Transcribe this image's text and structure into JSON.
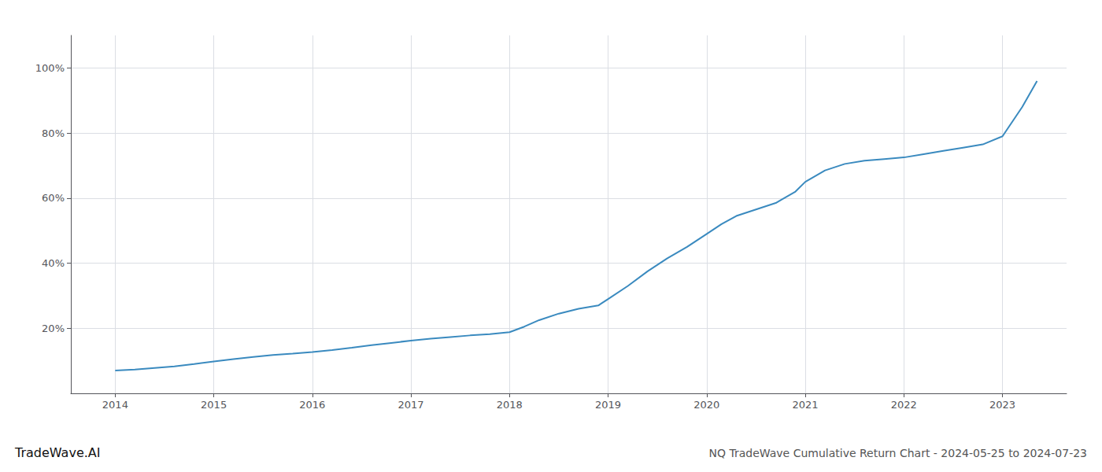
{
  "chart_data": {
    "type": "line",
    "title": "NQ TradeWave Cumulative Return Chart - 2024-05-25 to 2024-07-23",
    "annotations": [
      "TradeWave.AI"
    ],
    "color": "#3a8abf",
    "grid": true,
    "x": [
      2014.0,
      2014.2,
      2014.4,
      2014.6,
      2014.8,
      2015.0,
      2015.2,
      2015.4,
      2015.6,
      2015.8,
      2016.0,
      2016.2,
      2016.4,
      2016.6,
      2016.8,
      2017.0,
      2017.2,
      2017.4,
      2017.6,
      2017.8,
      2018.0,
      2018.15,
      2018.3,
      2018.5,
      2018.7,
      2018.9,
      2019.0,
      2019.2,
      2019.4,
      2019.6,
      2019.8,
      2020.0,
      2020.15,
      2020.3,
      2020.5,
      2020.7,
      2020.9,
      2021.0,
      2021.2,
      2021.4,
      2021.6,
      2021.8,
      2022.0,
      2022.2,
      2022.4,
      2022.6,
      2022.8,
      2023.0,
      2023.2,
      2023.35
    ],
    "values": [
      7.0,
      7.3,
      7.8,
      8.3,
      9.0,
      9.8,
      10.5,
      11.2,
      11.8,
      12.2,
      12.7,
      13.3,
      14.0,
      14.8,
      15.5,
      16.2,
      16.8,
      17.3,
      17.8,
      18.2,
      18.8,
      20.5,
      22.5,
      24.5,
      26.0,
      27.0,
      29.0,
      33.0,
      37.5,
      41.5,
      45.0,
      49.0,
      52.0,
      54.5,
      56.5,
      58.5,
      62.0,
      65.0,
      68.5,
      70.5,
      71.5,
      72.0,
      72.5,
      73.5,
      74.5,
      75.5,
      76.5,
      79.0,
      88.0,
      96.0
    ],
    "xlim": [
      2013.55,
      2023.65
    ],
    "xticks": [
      2014,
      2015,
      2016,
      2017,
      2018,
      2019,
      2020,
      2021,
      2022,
      2023
    ],
    "ylim": [
      0,
      110
    ],
    "yticks": [
      {
        "value": 20,
        "label": "20%"
      },
      {
        "value": 40,
        "label": "40%"
      },
      {
        "value": 60,
        "label": "60%"
      },
      {
        "value": 80,
        "label": "80%"
      },
      {
        "value": 100,
        "label": "100%"
      }
    ]
  }
}
